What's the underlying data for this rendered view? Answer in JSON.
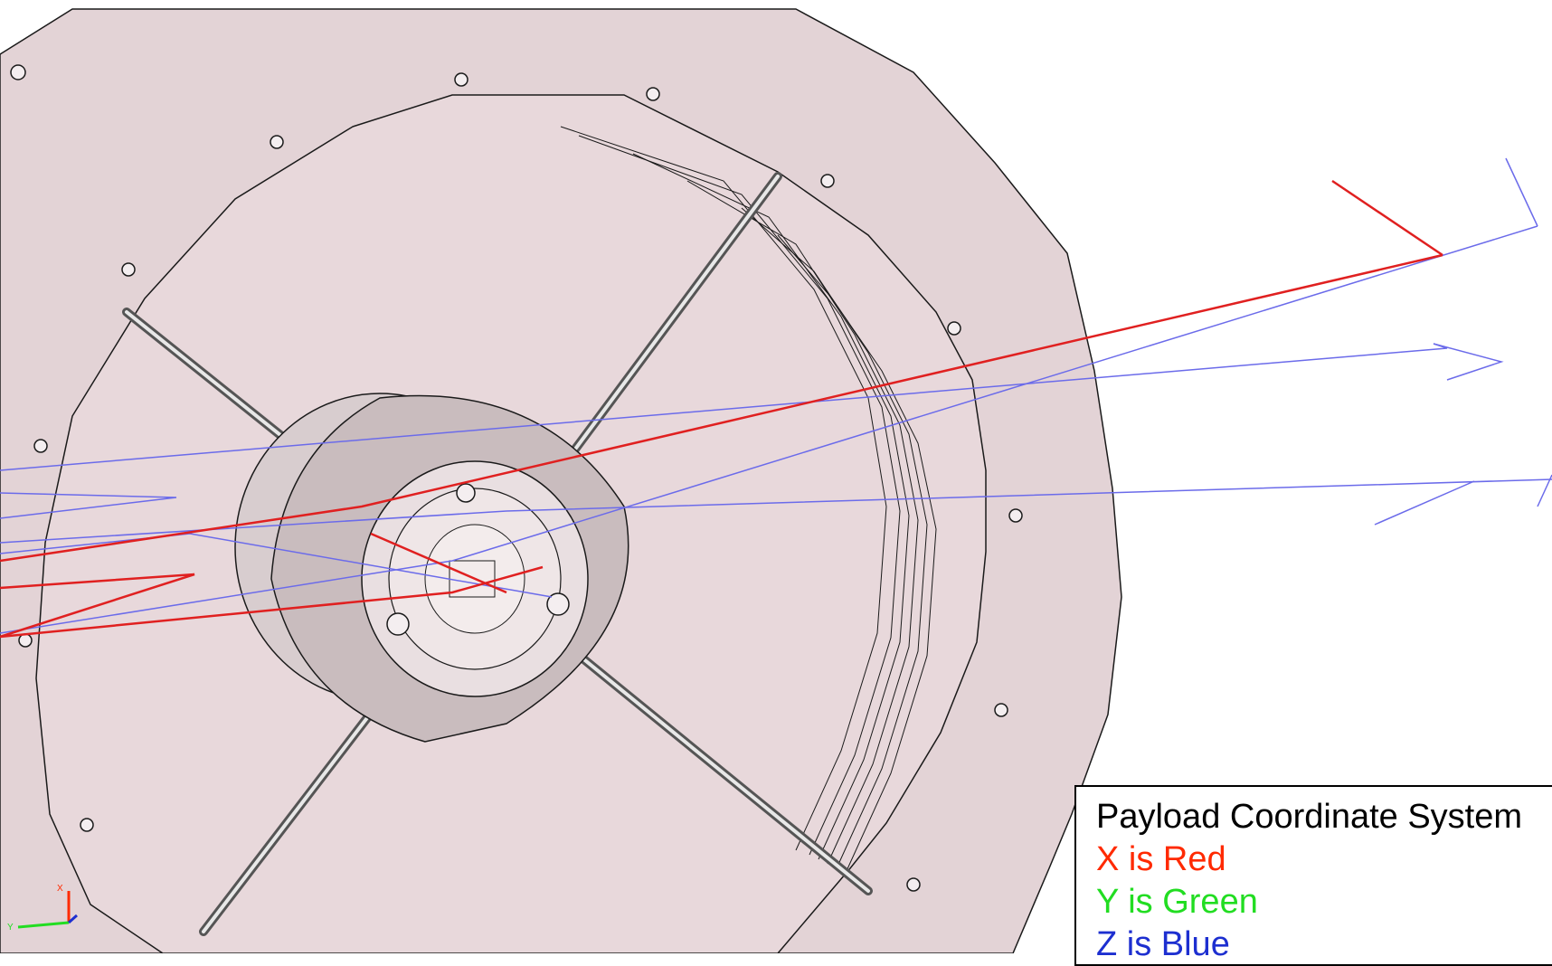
{
  "colors": {
    "background": "#ffffff",
    "housing_fill": "#e3d3d6",
    "aperture_fill": "#e8d8db",
    "hub_fill": "#d8cdcf",
    "outline": "#1a1a1a",
    "ray_red": "#e02020",
    "ray_blue": "#6b6bea",
    "x_axis": "#ff2a00",
    "y_axis": "#22dd22",
    "z_axis": "#1d2fd0"
  },
  "triad": {
    "x_label": "X",
    "y_label": "Y",
    "icon": "axis-triad-icon"
  },
  "legend": {
    "title": "Payload Coordinate System",
    "x_text": "X is Red",
    "y_text": "Y is Green",
    "z_text": "Z is Blue"
  }
}
